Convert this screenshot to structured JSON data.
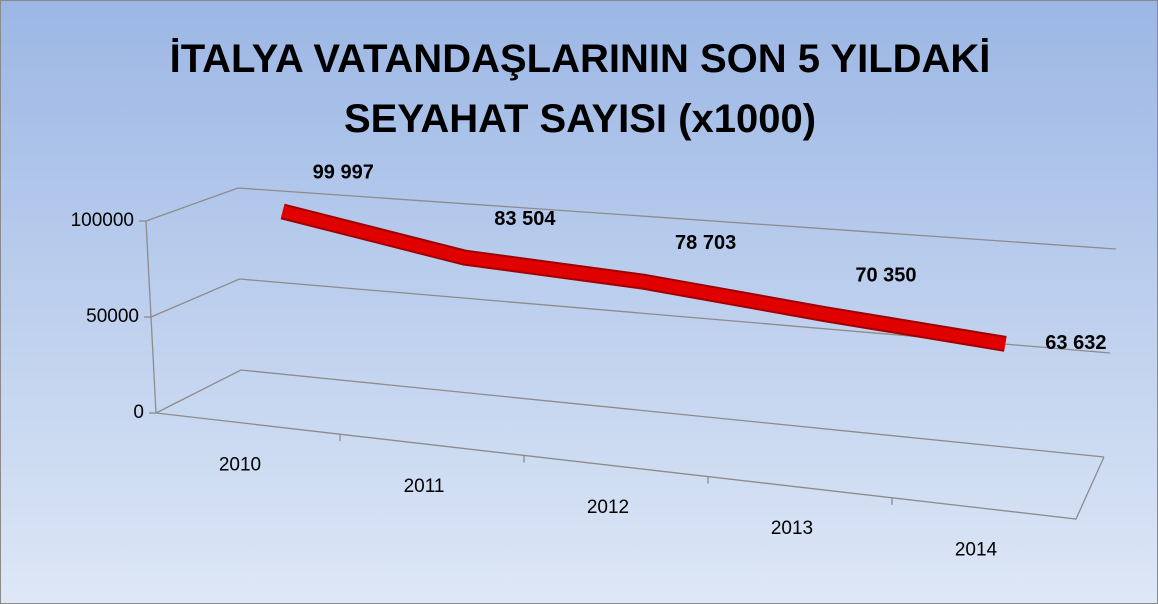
{
  "chart_data": {
    "type": "line3d",
    "title": "İTALYA VATANDAŞLARININ SON 5 YILDAKİ SEYAHAT SAYISI (x1000)",
    "categories": [
      "2010",
      "2011",
      "2012",
      "2013",
      "2014"
    ],
    "values": [
      99997,
      83504,
      78703,
      70350,
      63632
    ],
    "value_labels": [
      "99 997",
      "83 504",
      "78 703",
      "70 350",
      "63 632"
    ],
    "color": "#e00000",
    "ylim": [
      0,
      100000
    ],
    "yticks": [
      0,
      50000,
      100000
    ],
    "grid": true
  }
}
